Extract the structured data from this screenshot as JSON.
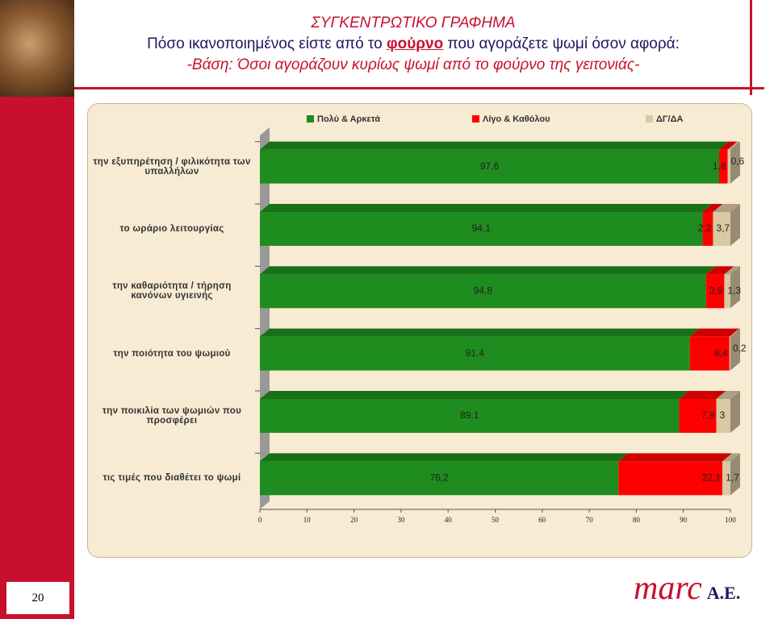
{
  "header": {
    "title": "ΣΥΓΚΕΝΤΡΩΤΙΚΟ ΓΡΑΦΗΜΑ",
    "question_before": "Πόσο ικανοποιημένος είστε από το",
    "question_emph": "φούρνο",
    "question_after": "που αγοράζετε ψωμί όσον αφορά:",
    "basis": "-Βάση: Όσοι αγοράζουν κυρίως ψωμί από το φούρνο της γειτονιάς-"
  },
  "chart_data": {
    "type": "stacked_bar_horizontal",
    "categories": [
      "την εξυπηρέτηση / φιλικότητα των υπαλλήλων",
      "το ωράριο λειτουργίας",
      "την καθαριότητα / τήρηση κανόνων υγιεινής",
      "την ποιότητα του ψωμιού",
      "την ποικιλία των ψωμιών που προσφέρει",
      "τις τιμές που διαθέτει το ψωμί"
    ],
    "series": [
      {
        "name": "Πολύ & Αρκετά",
        "color": "#1e8c1e",
        "values": [
          97.6,
          94.1,
          94.8,
          91.4,
          89.1,
          76.2
        ],
        "value_labels": [
          "97,6",
          "94,1",
          "94,8",
          "91,4",
          "89,1",
          "76,2"
        ]
      },
      {
        "name": "Λίγο & Καθόλου",
        "color": "#ff0000",
        "values": [
          1.8,
          2.2,
          3.9,
          8.4,
          7.9,
          22.1
        ],
        "value_labels": [
          "1,8",
          "2,2",
          "3,9",
          "8,4",
          "7,9",
          "22,1"
        ]
      },
      {
        "name": "ΔΓ/ΔΑ",
        "color": "#d8c8a4",
        "values": [
          0.6,
          3.7,
          1.3,
          0.2,
          3,
          1.7
        ],
        "value_labels": [
          "0,6",
          "3,7",
          "1,3",
          "0,2",
          "3",
          "1,7"
        ]
      }
    ],
    "xlim": [
      0,
      100
    ],
    "xticks": [
      0,
      10,
      20,
      30,
      40,
      50,
      60,
      70,
      80,
      90,
      100
    ],
    "legend": "top"
  },
  "footer": {
    "page": "20",
    "logo_main": "marc",
    "logo_suffix": "A.E."
  }
}
